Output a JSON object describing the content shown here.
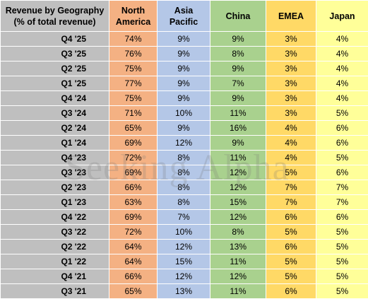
{
  "chart_data": {
    "type": "table",
    "title_line1": "Revenue by Geography",
    "title_line2": "(% of total revenue)",
    "columns": [
      {
        "line1": "North",
        "line2": "America",
        "cls": "col-na"
      },
      {
        "line1": "Asia",
        "line2": "Pacific",
        "cls": "col-ap"
      },
      {
        "line1": "China",
        "line2": "",
        "cls": "col-cn"
      },
      {
        "line1": "EMEA",
        "line2": "",
        "cls": "col-em"
      },
      {
        "line1": "Japan",
        "line2": "",
        "cls": "col-jp"
      }
    ],
    "rows": [
      {
        "quarter": "Q4 '25",
        "values": [
          "74%",
          "9%",
          "9%",
          "3%",
          "4%"
        ]
      },
      {
        "quarter": "Q3 '25",
        "values": [
          "76%",
          "9%",
          "8%",
          "3%",
          "4%"
        ]
      },
      {
        "quarter": "Q2 '25",
        "values": [
          "75%",
          "9%",
          "9%",
          "3%",
          "4%"
        ]
      },
      {
        "quarter": "Q1 '25",
        "values": [
          "77%",
          "9%",
          "7%",
          "3%",
          "4%"
        ]
      },
      {
        "quarter": "Q4 '24",
        "values": [
          "75%",
          "9%",
          "9%",
          "3%",
          "4%"
        ]
      },
      {
        "quarter": "Q3 '24",
        "values": [
          "71%",
          "10%",
          "11%",
          "3%",
          "5%"
        ]
      },
      {
        "quarter": "Q2 '24",
        "values": [
          "65%",
          "9%",
          "16%",
          "4%",
          "6%"
        ]
      },
      {
        "quarter": "Q1 '24",
        "values": [
          "69%",
          "12%",
          "9%",
          "4%",
          "6%"
        ]
      },
      {
        "quarter": "Q4 '23",
        "values": [
          "72%",
          "8%",
          "11%",
          "4%",
          "5%"
        ]
      },
      {
        "quarter": "Q3 '23",
        "values": [
          "69%",
          "8%",
          "12%",
          "5%",
          "6%"
        ]
      },
      {
        "quarter": "Q2 '23",
        "values": [
          "66%",
          "8%",
          "12%",
          "7%",
          "7%"
        ]
      },
      {
        "quarter": "Q1 '23",
        "values": [
          "63%",
          "8%",
          "15%",
          "7%",
          "7%"
        ]
      },
      {
        "quarter": "Q4 '22",
        "values": [
          "69%",
          "7%",
          "12%",
          "6%",
          "6%"
        ]
      },
      {
        "quarter": "Q3 '22",
        "values": [
          "72%",
          "10%",
          "8%",
          "5%",
          "5%"
        ]
      },
      {
        "quarter": "Q2 '22",
        "values": [
          "64%",
          "12%",
          "13%",
          "6%",
          "5%"
        ]
      },
      {
        "quarter": "Q1 '22",
        "values": [
          "64%",
          "15%",
          "11%",
          "5%",
          "5%"
        ]
      },
      {
        "quarter": "Q4 '21",
        "values": [
          "66%",
          "12%",
          "12%",
          "5%",
          "5%"
        ]
      },
      {
        "quarter": "Q3 '21",
        "values": [
          "65%",
          "13%",
          "11%",
          "6%",
          "5%"
        ]
      }
    ]
  },
  "colors": {
    "label_bg": "#bfbfbf",
    "north_america": "#f4b183",
    "asia_pacific": "#b4c7e7",
    "china": "#a9d18e",
    "emea": "#ffd966",
    "japan": "#ffff99"
  },
  "watermark": "Seeking Alpha"
}
